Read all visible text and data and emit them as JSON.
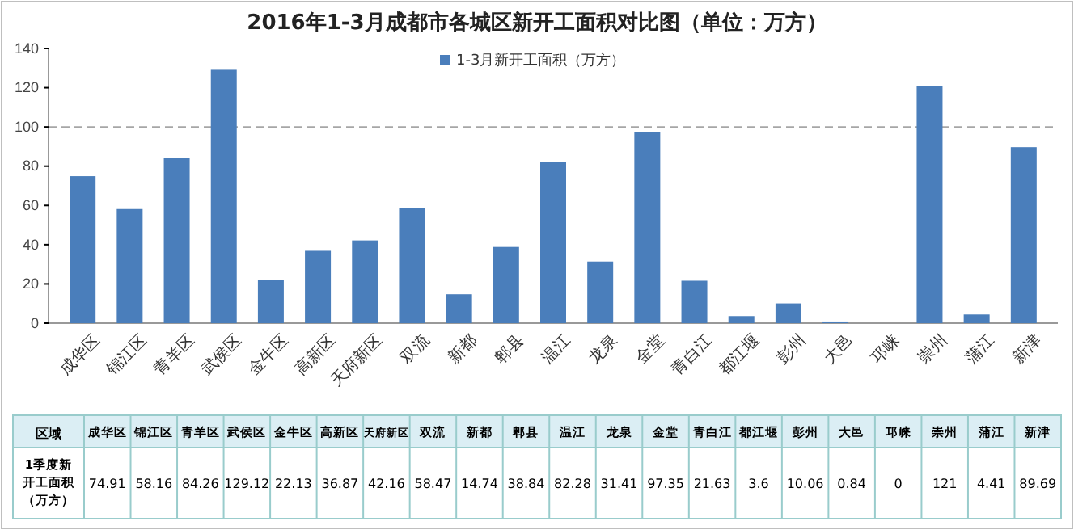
{
  "chart_data": {
    "type": "bar",
    "title": "2016年1-3月成都市各城区新开工面积对比图（单位：万方）",
    "categories": [
      "成华区",
      "锦江区",
      "青羊区",
      "武侯区",
      "金牛区",
      "高新区",
      "天府新区",
      "双流",
      "新都",
      "郫县",
      "温江",
      "龙泉",
      "金堂",
      "青白江",
      "都江堰",
      "彭州",
      "大邑",
      "邛崃",
      "崇州",
      "蒲江",
      "新津"
    ],
    "series": [
      {
        "name": "1-3月新开工面积（万方）",
        "color": "#4a7ebb",
        "values": [
          74.91,
          58.16,
          84.26,
          129.12,
          22.13,
          36.87,
          42.16,
          58.47,
          14.74,
          38.84,
          82.28,
          31.41,
          97.35,
          21.63,
          3.6,
          10.06,
          0.84,
          0,
          121,
          4.41,
          89.69
        ]
      }
    ],
    "ylim": [
      0,
      140
    ],
    "yticks": [
      0,
      20,
      40,
      60,
      80,
      100,
      120,
      140
    ],
    "ref_lines": [
      {
        "axis": "y",
        "value": 100,
        "color": "#a6a6a6",
        "line_style": "dashed"
      }
    ],
    "legend": "top",
    "grid": false,
    "data_labels": true,
    "annotations": [
      "区域",
      "1季度新开工面积（万方）"
    ]
  }
}
